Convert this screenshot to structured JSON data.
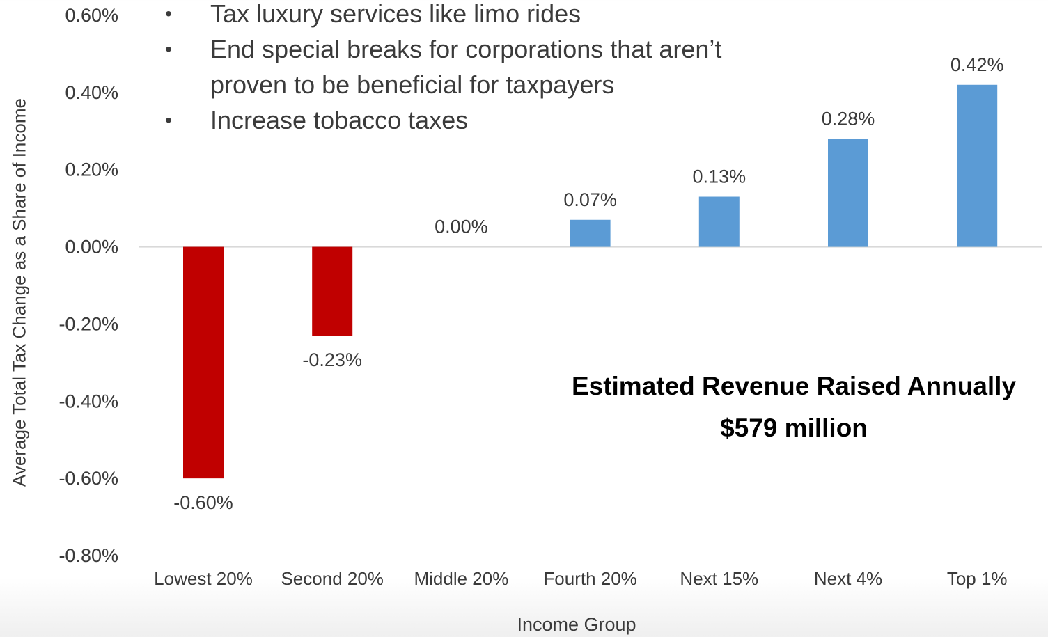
{
  "bullets": [
    "Tax luxury services like limo rides",
    "End special breaks for corporations that aren’t proven to be beneficial for taxpayers",
    "Increase tobacco taxes"
  ],
  "bullet_glyph": "•",
  "revenue": {
    "line1": "Estimated Revenue Raised Annually",
    "line2": "$579 million"
  },
  "chart_data": {
    "type": "bar",
    "xlabel": "Income Group",
    "ylabel": "Average Total Tax Change as a Share of Income",
    "categories": [
      "Lowest 20%",
      "Second 20%",
      "Middle 20%",
      "Fourth 20%",
      "Next 15%",
      "Next 4%",
      "Top 1%"
    ],
    "values": [
      -0.6,
      -0.23,
      0.0,
      0.07,
      0.13,
      0.28,
      0.42
    ],
    "data_labels": [
      "-0.60%",
      "-0.23%",
      "0.00%",
      "0.07%",
      "0.13%",
      "0.28%",
      "0.42%"
    ],
    "ylim": [
      -0.8,
      0.6
    ],
    "yticks": [
      0.6,
      0.4,
      0.2,
      0.0,
      -0.2,
      -0.4,
      -0.6,
      -0.8
    ],
    "ytick_labels": [
      "0.60%",
      "0.40%",
      "0.20%",
      "0.00%",
      "-0.20%",
      "-0.40%",
      "-0.60%",
      "-0.80%"
    ],
    "colors": {
      "negative": "#c00000",
      "positive": "#5b9bd5",
      "zero_line": "#d9d9d9"
    },
    "grid": false,
    "legend": "none"
  }
}
